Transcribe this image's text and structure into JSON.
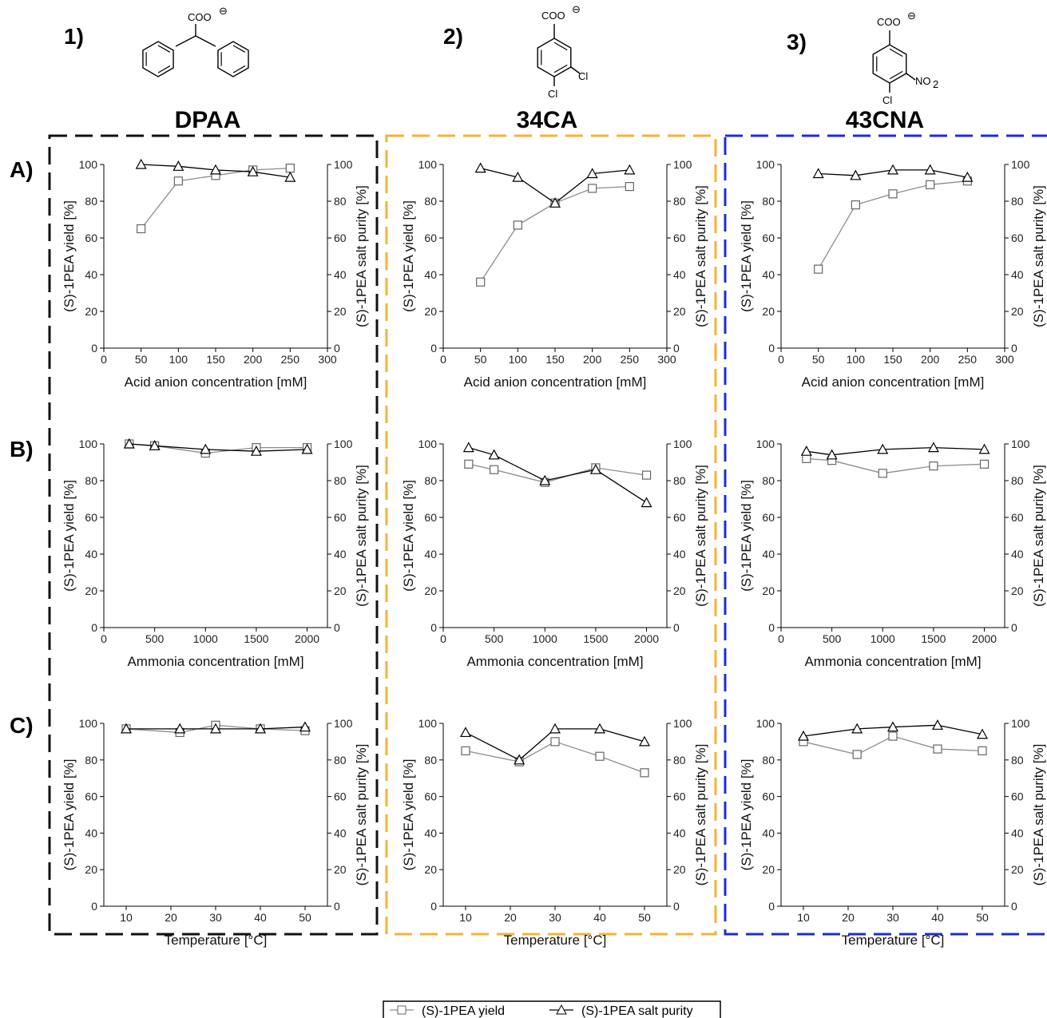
{
  "columns": [
    {
      "number": "1)",
      "name": "DPAA",
      "border_color": "#111111"
    },
    {
      "number": "2)",
      "name": "34CA",
      "border_color": "#f5b335"
    },
    {
      "number": "3)",
      "name": "43CNA",
      "border_color": "#1f2bd6"
    }
  ],
  "rows": [
    {
      "label": "A)",
      "xlabel": "Acid anion concentration [mM]"
    },
    {
      "label": "B)",
      "xlabel": "Ammonia concentration [mM]"
    },
    {
      "label": "C)",
      "xlabel": "Temperature [°C]"
    }
  ],
  "chemistry": {
    "carboxylate": "COO",
    "charge": "⊖",
    "cl": "Cl",
    "no2": "NO",
    "no2_sub": "2"
  },
  "axes": {
    "ylabel_left": "(S)-1PEA yield [%]",
    "ylabel_right": "(S)-1PEA salt purity [%]"
  },
  "legend": {
    "yield": "(S)-1PEA yield",
    "purity": "(S)-1PEA salt purity"
  },
  "colors": {
    "yield_line": "#8c8c8c",
    "purity_line": "#000000"
  },
  "chart_data": [
    {
      "type": "line",
      "panel": "1A",
      "xlim": [
        0,
        300
      ],
      "xticks": [
        0,
        50,
        100,
        150,
        200,
        250,
        300
      ],
      "ylim": [
        0,
        100
      ],
      "x": [
        50,
        100,
        150,
        200,
        250
      ],
      "series": [
        {
          "name": "(S)-1PEA yield",
          "values": [
            65,
            91,
            94,
            97,
            98
          ]
        },
        {
          "name": "(S)-1PEA salt purity",
          "values": [
            100,
            99,
            97,
            96,
            93
          ]
        }
      ]
    },
    {
      "type": "line",
      "panel": "2A",
      "xlim": [
        0,
        300
      ],
      "xticks": [
        0,
        50,
        100,
        150,
        200,
        250,
        300
      ],
      "ylim": [
        0,
        100
      ],
      "x": [
        50,
        100,
        150,
        200,
        250
      ],
      "series": [
        {
          "name": "(S)-1PEA yield",
          "values": [
            36,
            67,
            79,
            87,
            88
          ]
        },
        {
          "name": "(S)-1PEA salt purity",
          "values": [
            98,
            93,
            79,
            95,
            97
          ]
        }
      ]
    },
    {
      "type": "line",
      "panel": "3A",
      "xlim": [
        0,
        300
      ],
      "xticks": [
        0,
        50,
        100,
        150,
        200,
        250,
        300
      ],
      "ylim": [
        0,
        100
      ],
      "x": [
        50,
        100,
        150,
        200,
        250
      ],
      "series": [
        {
          "name": "(S)-1PEA yield",
          "values": [
            43,
            78,
            84,
            89,
            91
          ]
        },
        {
          "name": "(S)-1PEA salt purity",
          "values": [
            95,
            94,
            97,
            97,
            93
          ]
        }
      ]
    },
    {
      "type": "line",
      "panel": "1B",
      "xlim": [
        0,
        2200
      ],
      "xticks": [
        0,
        500,
        1000,
        1500,
        2000
      ],
      "ylim": [
        0,
        100
      ],
      "x": [
        250,
        500,
        1000,
        1500,
        2000
      ],
      "series": [
        {
          "name": "(S)-1PEA yield",
          "values": [
            100,
            99,
            95,
            98,
            98
          ]
        },
        {
          "name": "(S)-1PEA salt purity",
          "values": [
            100,
            99,
            97,
            96,
            97
          ]
        }
      ]
    },
    {
      "type": "line",
      "panel": "2B",
      "xlim": [
        0,
        2200
      ],
      "xticks": [
        0,
        500,
        1000,
        1500,
        2000
      ],
      "ylim": [
        0,
        100
      ],
      "x": [
        250,
        500,
        1000,
        1500,
        2000
      ],
      "series": [
        {
          "name": "(S)-1PEA yield",
          "values": [
            89,
            86,
            79,
            87,
            83
          ]
        },
        {
          "name": "(S)-1PEA salt purity",
          "values": [
            98,
            94,
            80,
            86,
            68
          ]
        }
      ]
    },
    {
      "type": "line",
      "panel": "3B",
      "xlim": [
        0,
        2200
      ],
      "xticks": [
        0,
        500,
        1000,
        1500,
        2000
      ],
      "ylim": [
        0,
        100
      ],
      "x": [
        250,
        500,
        1000,
        1500,
        2000
      ],
      "series": [
        {
          "name": "(S)-1PEA yield",
          "values": [
            92,
            91,
            84,
            88,
            89
          ]
        },
        {
          "name": "(S)-1PEA salt purity",
          "values": [
            96,
            94,
            97,
            98,
            97
          ]
        }
      ]
    },
    {
      "type": "line",
      "panel": "1C",
      "xlim": [
        5,
        55
      ],
      "xticks": [
        10,
        20,
        30,
        40,
        50
      ],
      "ylim": [
        0,
        100
      ],
      "x": [
        10,
        22,
        30,
        40,
        50
      ],
      "series": [
        {
          "name": "(S)-1PEA yield",
          "values": [
            97,
            95,
            99,
            97,
            96
          ]
        },
        {
          "name": "(S)-1PEA salt purity",
          "values": [
            97,
            97,
            97,
            97,
            98
          ]
        }
      ]
    },
    {
      "type": "line",
      "panel": "2C",
      "xlim": [
        5,
        55
      ],
      "xticks": [
        10,
        20,
        30,
        40,
        50
      ],
      "ylim": [
        0,
        100
      ],
      "x": [
        10,
        22,
        30,
        40,
        50
      ],
      "series": [
        {
          "name": "(S)-1PEA yield",
          "values": [
            85,
            79,
            90,
            82,
            73
          ]
        },
        {
          "name": "(S)-1PEA salt purity",
          "values": [
            95,
            80,
            97,
            97,
            90
          ]
        }
      ]
    },
    {
      "type": "line",
      "panel": "3C",
      "xlim": [
        5,
        55
      ],
      "xticks": [
        10,
        20,
        30,
        40,
        50
      ],
      "ylim": [
        0,
        100
      ],
      "x": [
        10,
        22,
        30,
        40,
        50
      ],
      "series": [
        {
          "name": "(S)-1PEA yield",
          "values": [
            90,
            83,
            93,
            86,
            85
          ]
        },
        {
          "name": "(S)-1PEA salt purity",
          "values": [
            93,
            97,
            98,
            99,
            94
          ]
        }
      ]
    }
  ]
}
